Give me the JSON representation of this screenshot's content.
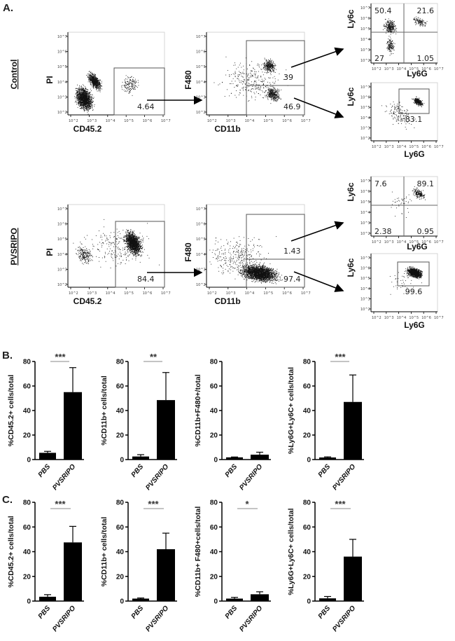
{
  "panels": {
    "a": "A.",
    "b": "B.",
    "c": "C."
  },
  "flow": {
    "conditions": [
      "Control",
      "PVSRIPO"
    ],
    "tick_labels": [
      "10^2",
      "10^3",
      "10^4",
      "10^5",
      "10^6",
      "10^7"
    ],
    "rows": [
      {
        "condition": "Control",
        "cd45": {
          "x_label": "CD45.2",
          "y_label": "PI",
          "gate": "4.64"
        },
        "cd11b": {
          "x_label": "CD11b",
          "y_label": "F480",
          "gate_upper": "39",
          "gate_lower": "46.9"
        },
        "ly6_quadrant": {
          "x_label": "Ly6G",
          "y_label": "Ly6c",
          "q_ul": "50.4",
          "q_ur": "21.6",
          "q_ll": "27",
          "q_lr": "1.05"
        },
        "ly6_gate": {
          "x_label": "Ly6G",
          "y_label": "Ly6c",
          "gate": "83.1"
        }
      },
      {
        "condition": "PVSRIPO",
        "cd45": {
          "x_label": "CD45.2",
          "y_label": "PI",
          "gate": "84.4"
        },
        "cd11b": {
          "x_label": "CD11b",
          "y_label": "F480",
          "gate_upper": "1.43",
          "gate_lower": "97.4"
        },
        "ly6_quadrant": {
          "x_label": "Ly6G",
          "y_label": "Ly6c",
          "q_ul": "7.6",
          "q_ur": "89.1",
          "q_ll": "2.38",
          "q_lr": "0.95"
        },
        "ly6_gate": {
          "x_label": "Ly6G",
          "y_label": "Ly6c",
          "gate": "99.6"
        }
      }
    ]
  },
  "chart_data": [
    {
      "panel": "B",
      "type": "bar",
      "categories": [
        "PBS",
        "PVSRIPO"
      ],
      "values": [
        5.5,
        55
      ],
      "errors": [
        1.2,
        20
      ],
      "ylabel": "%CD45.2+ cells/total",
      "ylim": [
        0,
        80
      ],
      "yticks": [
        0,
        20,
        40,
        60,
        80
      ],
      "significance": "***"
    },
    {
      "panel": "B",
      "type": "bar",
      "categories": [
        "PBS",
        "PVSRIPO"
      ],
      "values": [
        2.5,
        48.5
      ],
      "errors": [
        1.5,
        22.5
      ],
      "ylabel": "%CD11b+ cells/total",
      "ylim": [
        0,
        80
      ],
      "yticks": [
        0,
        20,
        40,
        60,
        80
      ],
      "significance": "**"
    },
    {
      "panel": "B",
      "type": "bar",
      "categories": [
        "PBS",
        "PVSRIPO"
      ],
      "values": [
        1.8,
        4
      ],
      "errors": [
        0.3,
        2
      ],
      "ylabel": "%CD11b+F480+/total",
      "ylim": [
        0,
        80
      ],
      "yticks": [
        0,
        20,
        40,
        60,
        80
      ],
      "significance": ""
    },
    {
      "panel": "B",
      "type": "bar",
      "categories": [
        "PBS",
        "PVSRIPO"
      ],
      "values": [
        1.7,
        47
      ],
      "errors": [
        0.5,
        22
      ],
      "ylabel": "%Ly6G+Ly6C+ cells/total",
      "ylim": [
        0,
        80
      ],
      "yticks": [
        0,
        20,
        40,
        60,
        80
      ],
      "significance": "***"
    },
    {
      "panel": "C",
      "type": "bar",
      "categories": [
        "PBS",
        "PVSRIPO"
      ],
      "values": [
        3.5,
        47.5
      ],
      "errors": [
        1.7,
        13
      ],
      "ylabel": "%CD45.2+ cells/total",
      "ylim": [
        0,
        80
      ],
      "yticks": [
        0,
        20,
        40,
        60,
        80
      ],
      "significance": "***"
    },
    {
      "panel": "C",
      "type": "bar",
      "categories": [
        "PBS",
        "PVSRIPO"
      ],
      "values": [
        2,
        42
      ],
      "errors": [
        0.5,
        13
      ],
      "ylabel": "%CD11b+ cells/total",
      "ylim": [
        0,
        80
      ],
      "yticks": [
        0,
        20,
        40,
        60,
        80
      ],
      "significance": "***"
    },
    {
      "panel": "C",
      "type": "bar",
      "categories": [
        "PBS",
        "PVSRIPO"
      ],
      "values": [
        2,
        5.5
      ],
      "errors": [
        1,
        2
      ],
      "ylabel": "%CD11b+ F480+cells/total",
      "ylim": [
        0,
        80
      ],
      "yticks": [
        0,
        20,
        40,
        60,
        80
      ],
      "significance": "*"
    },
    {
      "panel": "C",
      "type": "bar",
      "categories": [
        "PBS",
        "PVSRIPO"
      ],
      "values": [
        2.2,
        36
      ],
      "errors": [
        1.5,
        14
      ],
      "ylabel": "%Ly6G+Ly6C+ cells/total",
      "ylim": [
        0,
        80
      ],
      "yticks": [
        0,
        20,
        40,
        60,
        80
      ],
      "significance": "***"
    }
  ],
  "colors": {
    "bar": "#000000",
    "gate": "#555555",
    "sig_line": "#888888"
  }
}
